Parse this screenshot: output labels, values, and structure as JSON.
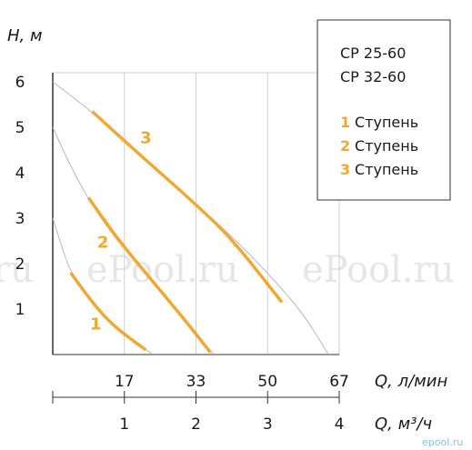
{
  "chart_data": {
    "type": "line",
    "title": "",
    "y_axis": {
      "label": "H, м",
      "ticks": [
        1,
        2,
        3,
        4,
        5,
        6
      ],
      "range": [
        0,
        6.2
      ]
    },
    "x_axis_primary": {
      "label": "Q, л/мин",
      "tick_values": [
        16.67,
        33.33,
        50,
        66.67
      ],
      "tick_labels": [
        "17",
        "33",
        "50",
        "67"
      ]
    },
    "x_axis_secondary": {
      "label": "Q, м³/ч",
      "tick_values": [
        1,
        2,
        3,
        4
      ],
      "tick_labels": [
        "1",
        "2",
        "3",
        "4"
      ],
      "range": [
        0,
        4
      ]
    },
    "grid": true,
    "legend": {
      "placement": "top-right",
      "models": [
        "CP 25-60",
        "CP 32-60"
      ],
      "entries": [
        {
          "num": "1",
          "text": "Ступень"
        },
        {
          "num": "2",
          "text": "Ступень"
        },
        {
          "num": "3",
          "text": "Ступень"
        }
      ]
    },
    "series": [
      {
        "label": "1",
        "color": "#f0a830",
        "envelope": [
          [
            0,
            3.0
          ],
          [
            0.1,
            2.5
          ],
          [
            0.25,
            1.8
          ],
          [
            0.55,
            1.1
          ],
          [
            0.85,
            0.6
          ],
          [
            1.4,
            0.0
          ]
        ],
        "working_range": [
          [
            0.25,
            1.8
          ],
          [
            0.55,
            1.15
          ],
          [
            0.85,
            0.62
          ],
          [
            1.3,
            0.1
          ]
        ],
        "label_pos": [
          0.6,
          0.55
        ]
      },
      {
        "label": "2",
        "color": "#f0a830",
        "envelope": [
          [
            0,
            5.0
          ],
          [
            0.2,
            4.3
          ],
          [
            0.5,
            3.4
          ],
          [
            0.9,
            2.5
          ],
          [
            1.4,
            1.6
          ],
          [
            1.85,
            0.75
          ],
          [
            2.25,
            0.0
          ]
        ],
        "working_range": [
          [
            0.5,
            3.45
          ],
          [
            0.9,
            2.55
          ],
          [
            1.4,
            1.6
          ],
          [
            1.85,
            0.75
          ],
          [
            2.2,
            0.05
          ]
        ],
        "label_pos": [
          0.7,
          2.35
        ]
      },
      {
        "label": "3",
        "color": "#f0a830",
        "envelope": [
          [
            0,
            6.0
          ],
          [
            0.5,
            5.4
          ],
          [
            1.0,
            4.7
          ],
          [
            1.5,
            4.0
          ],
          [
            2.0,
            3.3
          ],
          [
            2.5,
            2.6
          ],
          [
            3.0,
            1.8
          ],
          [
            3.5,
            0.9
          ],
          [
            3.85,
            0.0
          ]
        ],
        "working_range": [
          [
            0.55,
            5.35
          ],
          [
            1.0,
            4.7
          ],
          [
            1.5,
            4.0
          ],
          [
            2.0,
            3.3
          ],
          [
            2.5,
            2.55
          ],
          [
            3.2,
            1.15
          ]
        ],
        "label_pos": [
          1.3,
          4.65
        ]
      }
    ]
  },
  "watermarks": [
    "ru",
    "ePool.ru",
    "ePool.ru"
  ],
  "site_badge": "epool.ru"
}
